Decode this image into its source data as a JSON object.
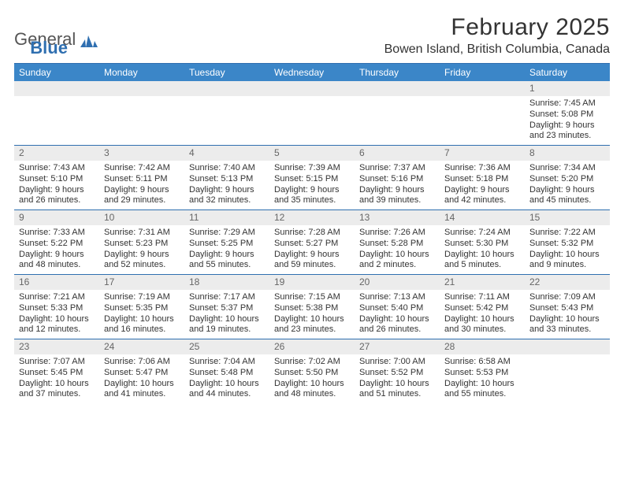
{
  "logo": {
    "word1": "General",
    "word2": "Blue"
  },
  "title": "February 2025",
  "location": "Bowen Island, British Columbia, Canada",
  "colors": {
    "header_bg": "#3b86c8",
    "border": "#2f6fb0",
    "daynum_bg": "#ececec",
    "text": "#333333"
  },
  "day_names": [
    "Sunday",
    "Monday",
    "Tuesday",
    "Wednesday",
    "Thursday",
    "Friday",
    "Saturday"
  ],
  "weeks": [
    [
      null,
      null,
      null,
      null,
      null,
      null,
      {
        "n": "1",
        "sunrise": "7:45 AM",
        "sunset": "5:08 PM",
        "daylight": "9 hours and 23 minutes."
      }
    ],
    [
      {
        "n": "2",
        "sunrise": "7:43 AM",
        "sunset": "5:10 PM",
        "daylight": "9 hours and 26 minutes."
      },
      {
        "n": "3",
        "sunrise": "7:42 AM",
        "sunset": "5:11 PM",
        "daylight": "9 hours and 29 minutes."
      },
      {
        "n": "4",
        "sunrise": "7:40 AM",
        "sunset": "5:13 PM",
        "daylight": "9 hours and 32 minutes."
      },
      {
        "n": "5",
        "sunrise": "7:39 AM",
        "sunset": "5:15 PM",
        "daylight": "9 hours and 35 minutes."
      },
      {
        "n": "6",
        "sunrise": "7:37 AM",
        "sunset": "5:16 PM",
        "daylight": "9 hours and 39 minutes."
      },
      {
        "n": "7",
        "sunrise": "7:36 AM",
        "sunset": "5:18 PM",
        "daylight": "9 hours and 42 minutes."
      },
      {
        "n": "8",
        "sunrise": "7:34 AM",
        "sunset": "5:20 PM",
        "daylight": "9 hours and 45 minutes."
      }
    ],
    [
      {
        "n": "9",
        "sunrise": "7:33 AM",
        "sunset": "5:22 PM",
        "daylight": "9 hours and 48 minutes."
      },
      {
        "n": "10",
        "sunrise": "7:31 AM",
        "sunset": "5:23 PM",
        "daylight": "9 hours and 52 minutes."
      },
      {
        "n": "11",
        "sunrise": "7:29 AM",
        "sunset": "5:25 PM",
        "daylight": "9 hours and 55 minutes."
      },
      {
        "n": "12",
        "sunrise": "7:28 AM",
        "sunset": "5:27 PM",
        "daylight": "9 hours and 59 minutes."
      },
      {
        "n": "13",
        "sunrise": "7:26 AM",
        "sunset": "5:28 PM",
        "daylight": "10 hours and 2 minutes."
      },
      {
        "n": "14",
        "sunrise": "7:24 AM",
        "sunset": "5:30 PM",
        "daylight": "10 hours and 5 minutes."
      },
      {
        "n": "15",
        "sunrise": "7:22 AM",
        "sunset": "5:32 PM",
        "daylight": "10 hours and 9 minutes."
      }
    ],
    [
      {
        "n": "16",
        "sunrise": "7:21 AM",
        "sunset": "5:33 PM",
        "daylight": "10 hours and 12 minutes."
      },
      {
        "n": "17",
        "sunrise": "7:19 AM",
        "sunset": "5:35 PM",
        "daylight": "10 hours and 16 minutes."
      },
      {
        "n": "18",
        "sunrise": "7:17 AM",
        "sunset": "5:37 PM",
        "daylight": "10 hours and 19 minutes."
      },
      {
        "n": "19",
        "sunrise": "7:15 AM",
        "sunset": "5:38 PM",
        "daylight": "10 hours and 23 minutes."
      },
      {
        "n": "20",
        "sunrise": "7:13 AM",
        "sunset": "5:40 PM",
        "daylight": "10 hours and 26 minutes."
      },
      {
        "n": "21",
        "sunrise": "7:11 AM",
        "sunset": "5:42 PM",
        "daylight": "10 hours and 30 minutes."
      },
      {
        "n": "22",
        "sunrise": "7:09 AM",
        "sunset": "5:43 PM",
        "daylight": "10 hours and 33 minutes."
      }
    ],
    [
      {
        "n": "23",
        "sunrise": "7:07 AM",
        "sunset": "5:45 PM",
        "daylight": "10 hours and 37 minutes."
      },
      {
        "n": "24",
        "sunrise": "7:06 AM",
        "sunset": "5:47 PM",
        "daylight": "10 hours and 41 minutes."
      },
      {
        "n": "25",
        "sunrise": "7:04 AM",
        "sunset": "5:48 PM",
        "daylight": "10 hours and 44 minutes."
      },
      {
        "n": "26",
        "sunrise": "7:02 AM",
        "sunset": "5:50 PM",
        "daylight": "10 hours and 48 minutes."
      },
      {
        "n": "27",
        "sunrise": "7:00 AM",
        "sunset": "5:52 PM",
        "daylight": "10 hours and 51 minutes."
      },
      {
        "n": "28",
        "sunrise": "6:58 AM",
        "sunset": "5:53 PM",
        "daylight": "10 hours and 55 minutes."
      },
      null
    ]
  ],
  "labels": {
    "sunrise": "Sunrise:",
    "sunset": "Sunset:",
    "daylight": "Daylight:"
  }
}
